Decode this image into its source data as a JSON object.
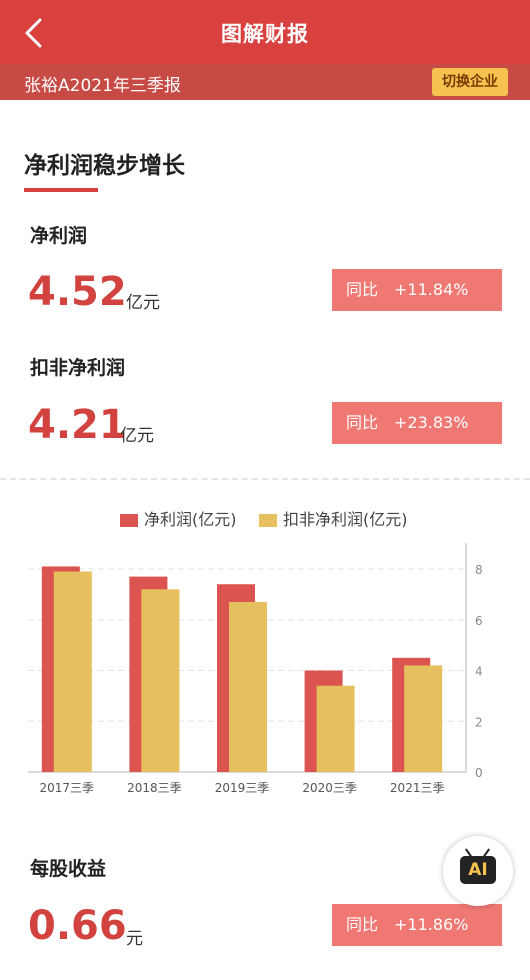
{
  "header": {
    "title": "图解财报",
    "back_icon": "chevron-left-icon"
  },
  "subheader": {
    "report": "张裕A2021年三季报",
    "switch_label": "切换企业"
  },
  "section": {
    "title": "净利润稳步增长"
  },
  "net_profit": {
    "label": "净利润",
    "value": "4.52",
    "unit": "亿元",
    "yoy_label": "同比",
    "yoy_value": "+11.84%"
  },
  "deducted_profit": {
    "label": "扣非净利润",
    "value": "4.21",
    "unit": "亿元",
    "yoy_label": "同比",
    "yoy_value": "+23.83%"
  },
  "eps": {
    "label": "每股收益",
    "value": "0.66",
    "unit": "元",
    "yoy_label": "同比",
    "yoy_value": "+11.86%"
  },
  "ai_button": {
    "label": "AI"
  },
  "colors": {
    "accent": "#d9413e",
    "series1": "#dc5450",
    "series2": "#e6bf5e",
    "yoy_bg": "#ef7873"
  },
  "chart_data": {
    "type": "bar",
    "categories": [
      "2017三季",
      "2018三季",
      "2019三季",
      "2020三季",
      "2021三季"
    ],
    "series": [
      {
        "name": "净利润(亿元)",
        "values": [
          8.1,
          7.7,
          7.4,
          4.0,
          4.5
        ]
      },
      {
        "name": "扣非净利润(亿元)",
        "values": [
          7.9,
          7.2,
          6.7,
          3.4,
          4.2
        ]
      }
    ],
    "y_ticks": [
      "0",
      "2",
      "4",
      "6",
      "8"
    ],
    "ylim": [
      0,
      9
    ],
    "y_axis_side": "right",
    "grid": true,
    "legend": "top-center"
  }
}
